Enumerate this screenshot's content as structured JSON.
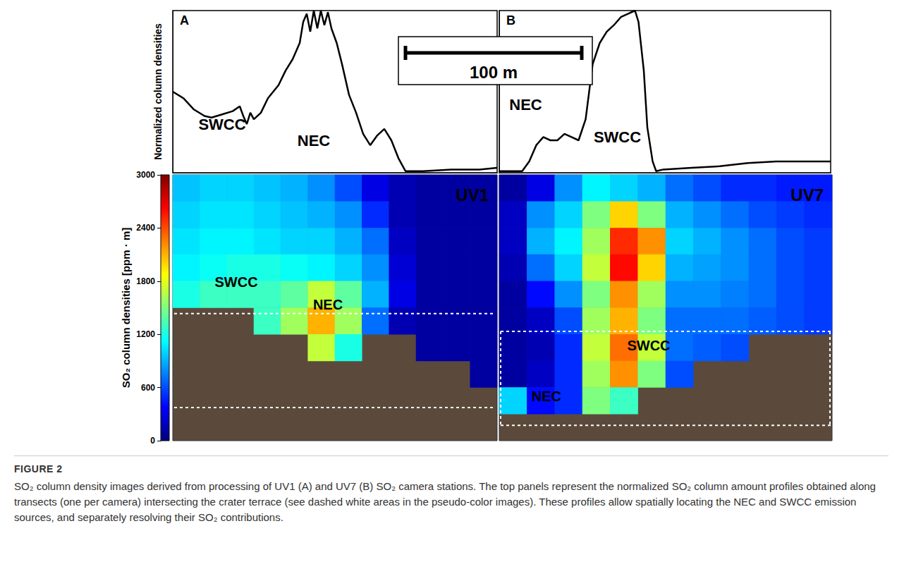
{
  "caption": {
    "label": "FIGURE 2",
    "text": "SO₂ column density images derived from processing of UV1 (A) and UV7 (B) SO₂ camera stations. The top panels represent the normalized SO₂ column amount profiles obtained along transects (one per camera) intersecting the crater terrace (see dashed white areas in the pseudo-color images). These profiles allow spatially locating the NEC and SWCC emission sources, and separately resolving their SO₂ contributions."
  },
  "scale_bar": {
    "length": 100,
    "label": "100 m"
  },
  "chart_data": [
    {
      "type": "line",
      "panel": "A",
      "ylabel": "Normalized column densities",
      "color": "#000000",
      "tick_labels": false,
      "xlim": [
        0,
        184
      ],
      "ylim": [
        0,
        1
      ],
      "x": [
        0,
        6,
        12,
        18,
        22,
        28,
        34,
        38,
        40,
        42,
        44,
        46,
        50,
        54,
        60,
        64,
        68,
        72,
        74,
        76,
        78,
        80,
        82,
        84,
        86,
        88,
        90,
        93,
        96,
        100,
        104,
        108,
        112,
        116,
        120,
        124,
        128,
        132,
        142,
        158,
        174,
        184
      ],
      "values": [
        0.5,
        0.46,
        0.39,
        0.35,
        0.34,
        0.36,
        0.38,
        0.41,
        0.35,
        0.3,
        0.37,
        0.33,
        0.37,
        0.46,
        0.54,
        0.63,
        0.7,
        0.8,
        0.93,
        0.98,
        0.87,
        1.0,
        0.89,
        1.0,
        0.91,
        0.99,
        0.89,
        0.8,
        0.67,
        0.48,
        0.37,
        0.24,
        0.17,
        0.23,
        0.27,
        0.2,
        0.09,
        0.01,
        0.01,
        0.02,
        0.02,
        0.03
      ],
      "annotations": [
        {
          "text": "SWCC",
          "x": 28,
          "y": 0.3
        },
        {
          "text": "NEC",
          "x": 80,
          "y": 0.2
        }
      ]
    },
    {
      "type": "line",
      "panel": "B",
      "color": "#000000",
      "tick_labels": false,
      "xlim": [
        0,
        188
      ],
      "ylim": [
        0,
        1
      ],
      "x": [
        0,
        13,
        17,
        21,
        25,
        29,
        33,
        37,
        41,
        45,
        49,
        53,
        57,
        61,
        65,
        69,
        73,
        77,
        79,
        82,
        84,
        87,
        89,
        93,
        109,
        125,
        141,
        157,
        173,
        188
      ],
      "values": [
        0.01,
        0.01,
        0.07,
        0.17,
        0.22,
        0.2,
        0.2,
        0.24,
        0.22,
        0.2,
        0.33,
        0.67,
        0.8,
        0.87,
        0.91,
        0.96,
        0.98,
        1.0,
        0.93,
        0.63,
        0.28,
        0.07,
        0.01,
        0.02,
        0.03,
        0.04,
        0.06,
        0.07,
        0.07,
        0.07
      ],
      "annotations": [
        {
          "text": "NEC",
          "x": 15,
          "y": 0.42
        },
        {
          "text": "SWCC",
          "x": 67,
          "y": 0.22
        }
      ]
    },
    {
      "type": "heatmap",
      "label": "UV1",
      "tick_labels": false,
      "colorbar": {
        "label": "SO₂ column densities [ppm · m]",
        "range": [
          0,
          3000
        ],
        "ticks": [
          0,
          600,
          1200,
          1800,
          2400,
          3000
        ]
      },
      "cells": [
        [
          950,
          1000,
          1000,
          950,
          900,
          800,
          600,
          300,
          150,
          100,
          100,
          100
        ],
        [
          1000,
          1050,
          1050,
          1000,
          950,
          900,
          800,
          500,
          150,
          100,
          100,
          100
        ],
        [
          1050,
          1100,
          1100,
          1050,
          1000,
          1000,
          900,
          700,
          200,
          100,
          100,
          100
        ],
        [
          1100,
          1150,
          1200,
          1200,
          1150,
          1100,
          1000,
          800,
          250,
          100,
          100,
          100
        ],
        [
          1200,
          1300,
          1300,
          1300,
          1400,
          1700,
          1400,
          900,
          300,
          100,
          100,
          100
        ],
        [
          null,
          null,
          null,
          1300,
          1600,
          2100,
          1600,
          700,
          150,
          100,
          100,
          100
        ],
        [
          null,
          null,
          null,
          null,
          null,
          1700,
          1200,
          null,
          null,
          100,
          100,
          100
        ],
        [
          null,
          null,
          null,
          null,
          null,
          null,
          null,
          null,
          null,
          null,
          null,
          100
        ],
        [
          null,
          null,
          null,
          null,
          null,
          null,
          null,
          null,
          null,
          null,
          null,
          null
        ],
        [
          null,
          null,
          null,
          null,
          null,
          null,
          null,
          null,
          null,
          null,
          null,
          null
        ]
      ],
      "annotations": [
        {
          "text": "SWCC",
          "col": 2.35,
          "row": 4.03
        },
        {
          "text": "NEC",
          "col": 5.74,
          "row": 4.88
        }
      ]
    },
    {
      "type": "heatmap",
      "label": "UV7",
      "tick_labels": false,
      "cells": [
        [
          100,
          300,
          800,
          1100,
          1000,
          900,
          700,
          600,
          500,
          500,
          450,
          450
        ],
        [
          200,
          800,
          1000,
          1500,
          2000,
          1500,
          900,
          800,
          700,
          600,
          550,
          500
        ],
        [
          200,
          900,
          1100,
          1600,
          2500,
          2200,
          1000,
          900,
          800,
          700,
          600,
          550
        ],
        [
          150,
          700,
          1000,
          1700,
          2600,
          2000,
          900,
          850,
          800,
          700,
          600,
          550
        ],
        [
          100,
          400,
          800,
          1500,
          2200,
          1600,
          800,
          800,
          750,
          700,
          600,
          550
        ],
        [
          100,
          200,
          600,
          1600,
          2100,
          1500,
          700,
          700,
          700,
          650,
          600,
          550
        ],
        [
          100,
          150,
          500,
          1700,
          2300,
          1700,
          700,
          650,
          600,
          null,
          null,
          null
        ],
        [
          100,
          200,
          500,
          1600,
          2200,
          1500,
          600,
          null,
          null,
          null,
          null,
          null
        ],
        [
          1000,
          400,
          500,
          1500,
          1300,
          null,
          null,
          null,
          null,
          null,
          null,
          null
        ],
        [
          null,
          null,
          null,
          null,
          null,
          null,
          null,
          null,
          null,
          null,
          null,
          null
        ]
      ],
      "annotations": [
        {
          "text": "SWCC",
          "col": 5.39,
          "row": 6.42
        },
        {
          "text": "NEC",
          "col": 1.7,
          "row": 8.33
        }
      ]
    }
  ]
}
